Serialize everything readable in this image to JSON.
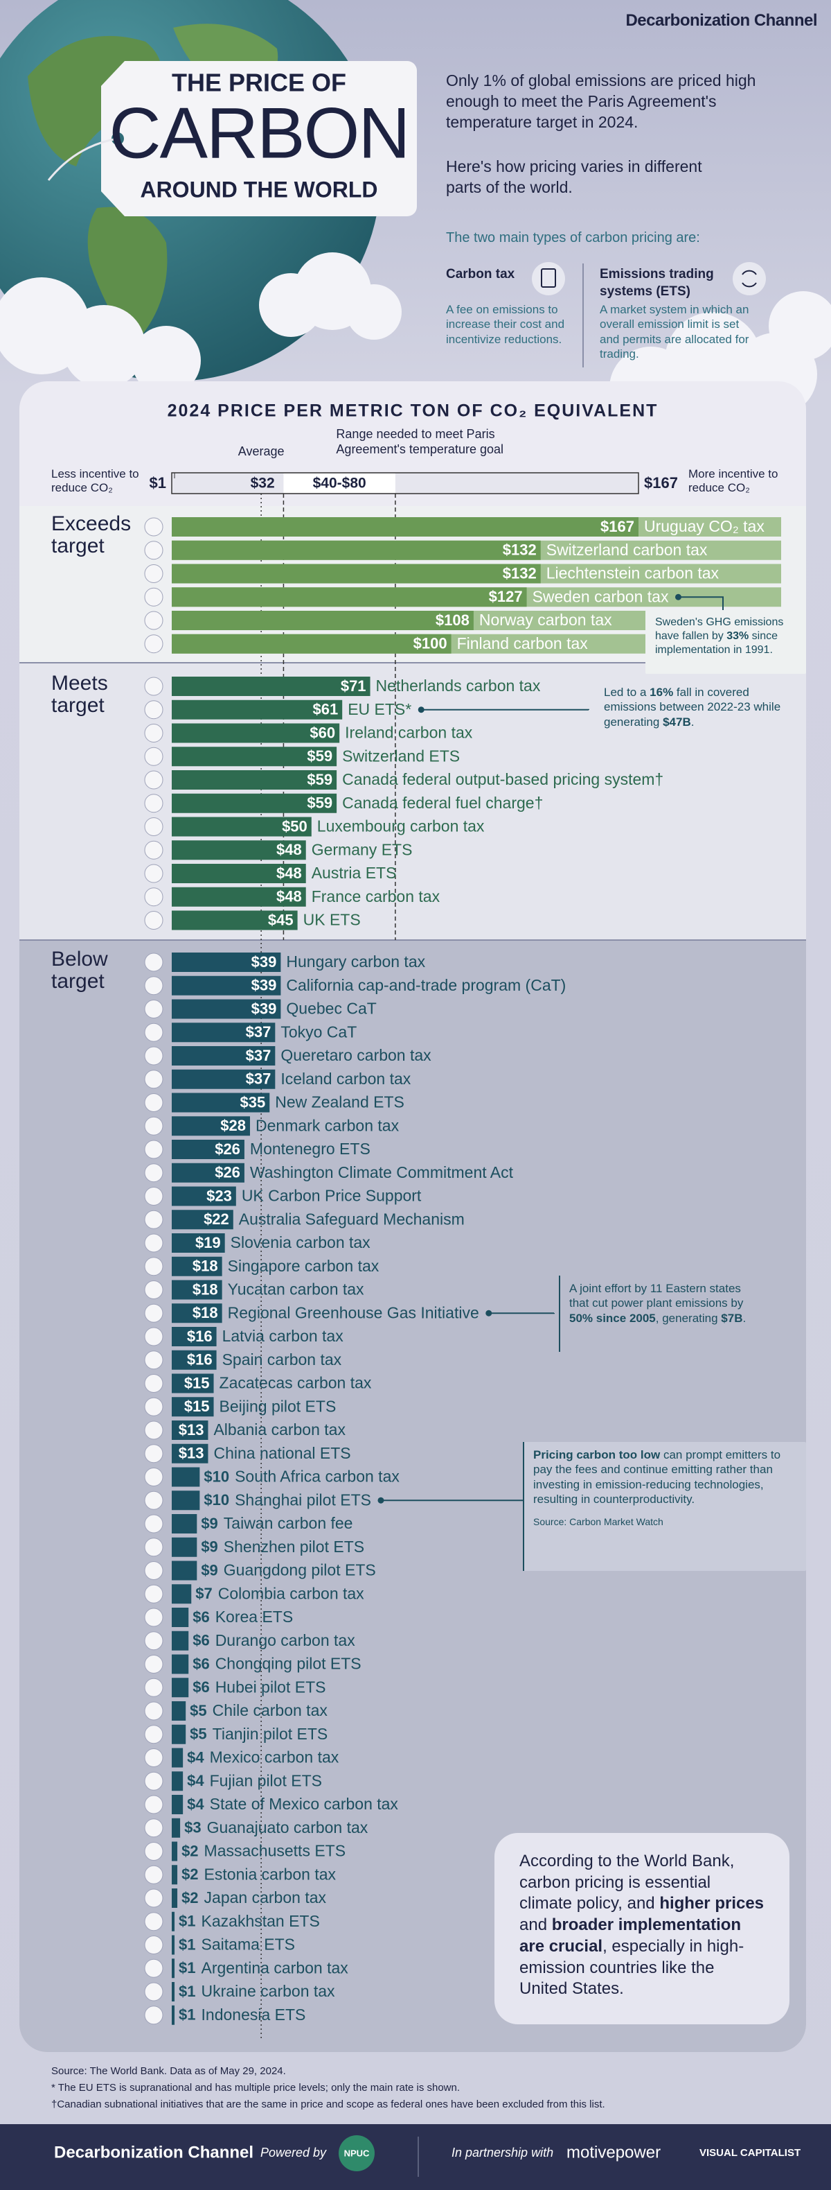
{
  "header": {
    "brand": "Decarbonization Channel",
    "title_top": "THE PRICE OF",
    "title_main": "CARBON",
    "title_bottom": "AROUND THE WORLD",
    "intro_1": "Only 1% of global emissions are priced high enough to meet the Paris Agreement's temperature target in 2024.",
    "intro_2": "Here's how pricing varies in different parts of the world.",
    "types_lead": "The two main types of carbon pricing are:",
    "types": [
      {
        "name": "Carbon tax",
        "description": "A fee on emissions to increase their cost and incentivize reductions."
      },
      {
        "name": "Emissions trading systems (ETS)",
        "description": "A market system in which an overall emission limit is set and permits are allocated for trading."
      }
    ]
  },
  "chart_data": {
    "type": "bar",
    "orientation": "horizontal",
    "title": "2024 PRICE PER METRIC TON OF CO₂ EQUIVALENT",
    "scale_left_label": "Less incentive to reduce CO₂",
    "scale_right_label": "More incentive to reduce CO₂",
    "xlim": [
      0,
      167
    ],
    "xticks": [
      {
        "value": 1,
        "label": "$1"
      },
      {
        "value": 167,
        "label": "$167"
      }
    ],
    "average": {
      "title": "Average",
      "value": 32,
      "label": "$32"
    },
    "target_range": {
      "title": "Range needed to meet Paris Agreement's temperature goal",
      "values": [
        40,
        80
      ],
      "label": "$40-$80"
    },
    "groups": [
      {
        "name": "Exceeds target",
        "color": "#6a9a55",
        "categories": [
          "Uruguay CO₂ tax",
          "Switzerland carbon tax",
          "Liechtenstein carbon tax",
          "Sweden carbon tax",
          "Norway carbon tax",
          "Finland carbon tax"
        ],
        "values": [
          167,
          132,
          132,
          127,
          108,
          100
        ],
        "value_labels": [
          "$167",
          "$132",
          "$132",
          "$127",
          "$108",
          "$100"
        ]
      },
      {
        "name": "Meets target",
        "color": "#2e6b50",
        "categories": [
          "Netherlands carbon tax",
          "EU ETS*",
          "Ireland carbon tax",
          "Switzerland ETS",
          "Canada federal output-based pricing system†",
          "Canada federal fuel charge†",
          "Luxembourg carbon tax",
          "Germany ETS",
          "Austria ETS",
          "France carbon tax",
          "UK ETS"
        ],
        "values": [
          71,
          61,
          60,
          59,
          59,
          59,
          50,
          48,
          48,
          48,
          45
        ],
        "value_labels": [
          "$71",
          "$61",
          "$60",
          "$59",
          "$59",
          "$59",
          "$50",
          "$48",
          "$48",
          "$48",
          "$45"
        ]
      },
      {
        "name": "Below target",
        "color": "#1d5163",
        "categories": [
          "Hungary carbon tax",
          "California cap-and-trade program (CaT)",
          "Quebec CaT",
          "Tokyo CaT",
          "Queretaro carbon tax",
          "Iceland carbon tax",
          "New Zealand ETS",
          "Denmark carbon tax",
          "Montenegro ETS",
          "Washington Climate Commitment Act",
          "UK Carbon Price Support",
          "Australia Safeguard Mechanism",
          "Slovenia carbon tax",
          "Singapore carbon tax",
          "Yucatan carbon tax",
          "Regional Greenhouse Gas Initiative",
          "Latvia carbon tax",
          "Spain carbon tax",
          "Zacatecas carbon tax",
          "Beijing pilot ETS",
          "Albania carbon tax",
          "China national ETS",
          "South Africa carbon tax",
          "Shanghai pilot ETS",
          "Taiwan carbon fee",
          "Shenzhen pilot ETS",
          "Guangdong pilot ETS",
          "Colombia carbon tax",
          "Korea ETS",
          "Durango carbon tax",
          "Chongqing pilot ETS",
          "Hubei pilot ETS",
          "Chile carbon tax",
          "Tianjin pilot ETS",
          "Mexico carbon tax",
          "Fujian pilot ETS",
          "State of Mexico carbon tax",
          "Guanajuato carbon tax",
          "Massachusetts ETS",
          "Estonia carbon tax",
          "Japan carbon tax",
          "Kazakhstan ETS",
          "Saitama ETS",
          "Argentina carbon tax",
          "Ukraine carbon tax",
          "Indonesia ETS"
        ],
        "values": [
          39,
          39,
          39,
          37,
          37,
          37,
          35,
          28,
          26,
          26,
          23,
          22,
          19,
          18,
          18,
          18,
          16,
          16,
          15,
          15,
          13,
          13,
          10,
          10,
          9,
          9,
          9,
          7,
          6,
          6,
          6,
          6,
          5,
          5,
          4,
          4,
          4,
          3,
          2,
          2,
          2,
          1,
          1,
          1,
          1,
          1
        ],
        "value_labels": [
          "$39",
          "$39",
          "$39",
          "$37",
          "$37",
          "$37",
          "$35",
          "$28",
          "$26",
          "$26",
          "$23",
          "$22",
          "$19",
          "$18",
          "$18",
          "$18",
          "$16",
          "$16",
          "$15",
          "$15",
          "$13",
          "$13",
          "$10",
          "$10",
          "$9",
          "$9",
          "$9",
          "$7",
          "$6",
          "$6",
          "$6",
          "$6",
          "$5",
          "$5",
          "$4",
          "$4",
          "$4",
          "$3",
          "$2",
          "$2",
          "$2",
          "$1",
          "$1",
          "$1",
          "$1",
          "$1"
        ]
      }
    ],
    "annotations": [
      {
        "parts": [
          "Sweden's GHG emissions have fallen by ",
          "33%",
          " since implementation in 1991."
        ]
      },
      {
        "parts": [
          "Led to a ",
          "16%",
          " fall in covered emissions between 2022-23 while generating ",
          "$47B",
          "."
        ]
      },
      {
        "parts": [
          "A joint effort by 11 Eastern states that cut power plant emissions by ",
          "50% since 2005",
          ", generating ",
          "$7B",
          "."
        ]
      },
      {
        "parts": [
          "",
          "Pricing carbon too low",
          " can prompt emitters to pay the fees and continue emitting rather than investing in emission-reducing technologies, resulting in counterproductivity."
        ],
        "source": "Source: Carbon Market Watch"
      },
      {
        "parts": [
          "According to the World Bank, carbon pricing is essential climate policy, and ",
          "higher prices",
          " and ",
          "broader implementation are crucial",
          ", especially in high-emission countries like the United States."
        ]
      }
    ]
  },
  "footer": {
    "source": "Source: The World Bank. Data as of May 29, 2024.",
    "note_1": "* The EU ETS is supranational and has multiple price levels; only the main rate is shown.",
    "note_2": "†Canadian subnational initiatives that are the same in price and scope as federal ones have been excluded from this list.",
    "brand": "Decarbonization Channel",
    "powered_by": "Powered by",
    "powered_logo": "NPUC",
    "partnership": "In partnership with",
    "partners": [
      "motivepower",
      "VISUAL CAPITALIST"
    ]
  }
}
